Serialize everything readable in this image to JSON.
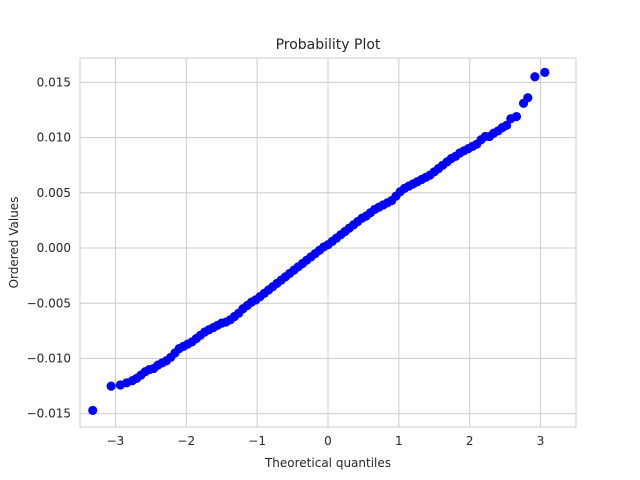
{
  "chart_data": {
    "type": "scatter",
    "title": "Probability Plot",
    "xlabel": "Theoretical quantiles",
    "ylabel": "Ordered Values",
    "xlim": [
      -3.5,
      3.5
    ],
    "ylim": [
      -0.0162,
      0.0172
    ],
    "x_ticks": [
      -3,
      -2,
      -1,
      0,
      1,
      2,
      3
    ],
    "x_tick_labels": [
      "−3",
      "−2",
      "−1",
      "0",
      "1",
      "2",
      "3"
    ],
    "y_ticks": [
      -0.015,
      -0.01,
      -0.005,
      0.0,
      0.005,
      0.01,
      0.015
    ],
    "y_tick_labels": [
      "−0.015",
      "−0.010",
      "−0.005",
      "0.000",
      "0.005",
      "0.010",
      "0.015"
    ],
    "grid": true,
    "marker_color": "#0000ff",
    "series": [
      {
        "points": [
          [
            -3.32,
            -0.0147
          ],
          [
            -3.06,
            -0.0125
          ],
          [
            -2.93,
            -0.0124
          ],
          [
            -2.84,
            -0.0122
          ],
          [
            -2.76,
            -0.012
          ],
          [
            -2.7,
            -0.0118
          ],
          [
            -2.64,
            -0.0115
          ],
          [
            -2.58,
            -0.0112
          ],
          [
            -2.52,
            -0.011
          ],
          [
            -2.46,
            -0.0109
          ],
          [
            -2.4,
            -0.0106
          ],
          [
            -2.34,
            -0.0104
          ],
          [
            -2.28,
            -0.0102
          ],
          [
            -2.22,
            -0.0099
          ],
          [
            -2.16,
            -0.0095
          ],
          [
            -2.1,
            -0.0091
          ],
          [
            -2.04,
            -0.0089
          ],
          [
            -1.98,
            -0.0087
          ],
          [
            -1.92,
            -0.0085
          ],
          [
            -1.86,
            -0.0082
          ],
          [
            -1.8,
            -0.0079
          ],
          [
            -1.74,
            -0.0076
          ],
          [
            -1.68,
            -0.0074
          ],
          [
            -1.62,
            -0.0072
          ],
          [
            -1.56,
            -0.007
          ],
          [
            -1.5,
            -0.0068
          ],
          [
            -1.44,
            -0.0067
          ],
          [
            -1.38,
            -0.0065
          ],
          [
            -1.32,
            -0.0062
          ],
          [
            -1.26,
            -0.0059
          ],
          [
            -1.2,
            -0.0055
          ],
          [
            -1.14,
            -0.0052
          ],
          [
            -1.08,
            -0.0049
          ],
          [
            -1.02,
            -0.0047
          ],
          [
            -0.96,
            -0.0044
          ],
          [
            -0.9,
            -0.0041
          ],
          [
            -0.84,
            -0.0038
          ],
          [
            -0.78,
            -0.0035
          ],
          [
            -0.72,
            -0.0032
          ],
          [
            -0.66,
            -0.0029
          ],
          [
            -0.6,
            -0.0026
          ],
          [
            -0.54,
            -0.0023
          ],
          [
            -0.48,
            -0.002
          ],
          [
            -0.42,
            -0.0017
          ],
          [
            -0.36,
            -0.0014
          ],
          [
            -0.3,
            -0.0011
          ],
          [
            -0.24,
            -0.0008
          ],
          [
            -0.18,
            -0.0005
          ],
          [
            -0.12,
            -0.0002
          ],
          [
            -0.06,
            0.0001
          ],
          [
            0.0,
            0.0003
          ],
          [
            0.06,
            0.0006
          ],
          [
            0.12,
            0.0009
          ],
          [
            0.18,
            0.0012
          ],
          [
            0.24,
            0.0015
          ],
          [
            0.3,
            0.0018
          ],
          [
            0.36,
            0.0021
          ],
          [
            0.42,
            0.0024
          ],
          [
            0.48,
            0.0027
          ],
          [
            0.54,
            0.0029
          ],
          [
            0.6,
            0.0032
          ],
          [
            0.66,
            0.0035
          ],
          [
            0.72,
            0.0037
          ],
          [
            0.78,
            0.0039
          ],
          [
            0.84,
            0.0041
          ],
          [
            0.9,
            0.0043
          ],
          [
            0.96,
            0.0047
          ],
          [
            1.02,
            0.0051
          ],
          [
            1.08,
            0.0054
          ],
          [
            1.14,
            0.0056
          ],
          [
            1.2,
            0.0058
          ],
          [
            1.26,
            0.006
          ],
          [
            1.32,
            0.0062
          ],
          [
            1.38,
            0.0064
          ],
          [
            1.44,
            0.0066
          ],
          [
            1.5,
            0.0069
          ],
          [
            1.56,
            0.0072
          ],
          [
            1.62,
            0.0075
          ],
          [
            1.68,
            0.0078
          ],
          [
            1.74,
            0.0081
          ],
          [
            1.8,
            0.0083
          ],
          [
            1.86,
            0.0086
          ],
          [
            1.92,
            0.0088
          ],
          [
            1.98,
            0.009
          ],
          [
            2.04,
            0.0092
          ],
          [
            2.1,
            0.0094
          ],
          [
            2.16,
            0.0098
          ],
          [
            2.22,
            0.0101
          ],
          [
            2.28,
            0.0101
          ],
          [
            2.34,
            0.0104
          ],
          [
            2.4,
            0.0106
          ],
          [
            2.46,
            0.0109
          ],
          [
            2.52,
            0.0111
          ],
          [
            2.58,
            0.0117
          ],
          [
            2.66,
            0.0119
          ],
          [
            2.76,
            0.0131
          ],
          [
            2.82,
            0.0136
          ],
          [
            2.92,
            0.0155
          ],
          [
            3.06,
            0.0159
          ]
        ]
      }
    ]
  }
}
